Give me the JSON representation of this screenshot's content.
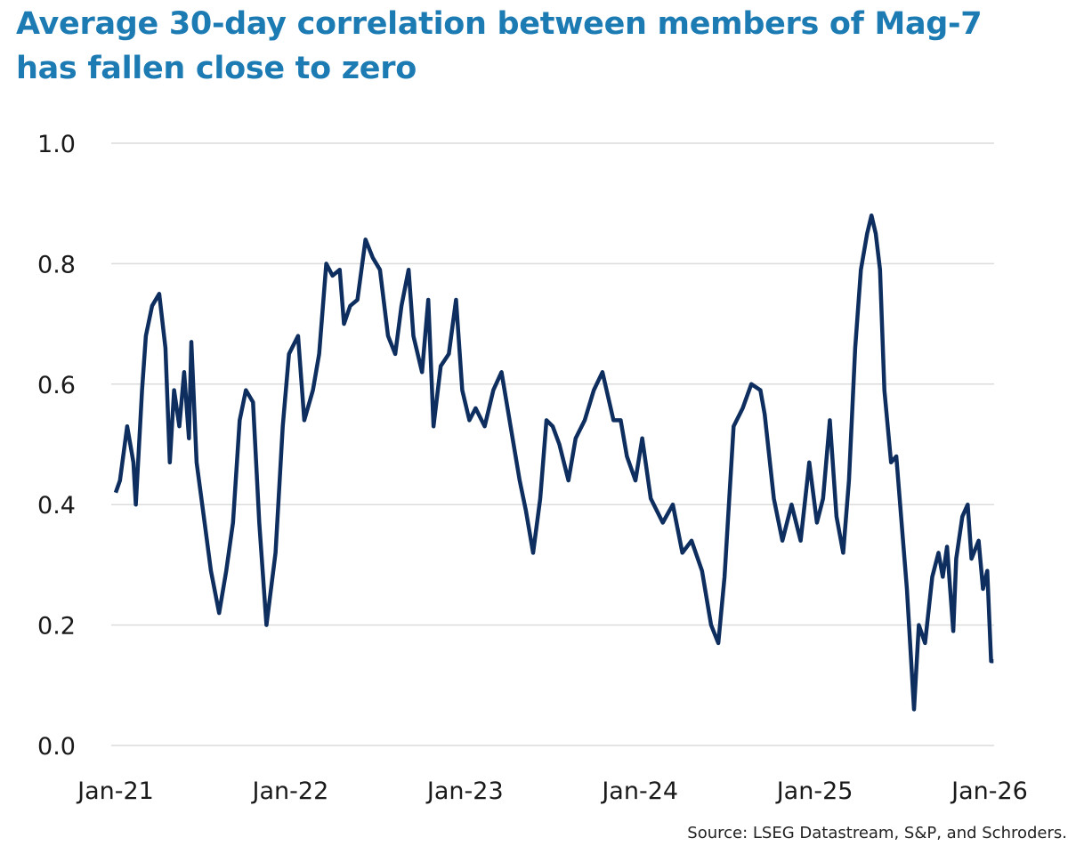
{
  "chart_data": {
    "type": "line",
    "title": "Average 30-day correlation between members of Mag-7 has fallen close to zero",
    "title_lines": [
      "Average 30-day correlation between members of Mag-7",
      "has fallen close to zero"
    ],
    "source": "Source: LSEG Datastream, S&P, and Schroders.",
    "xlabel": "",
    "ylabel": "",
    "ylim": [
      0,
      1.0
    ],
    "xlim": [
      "2021-01-01",
      "2026-01-01"
    ],
    "y_ticks": [
      "0.0",
      "0.2",
      "0.4",
      "0.6",
      "0.8",
      "1.0"
    ],
    "x_ticks": [
      "Jan-21",
      "Jan-22",
      "Jan-23",
      "Jan-24",
      "Jan-25",
      "Jan-26"
    ],
    "grid": true,
    "line_color": "#0d2e5e",
    "title_color": "#1d7bb3",
    "series": [
      {
        "x": [
          "2021-01-01",
          "2021-01-10",
          "2021-01-25",
          "2021-02-07",
          "2021-02-12",
          "2021-02-25",
          "2021-03-05",
          "2021-03-18",
          "2021-04-02",
          "2021-04-15",
          "2021-04-24",
          "2021-05-03",
          "2021-05-14",
          "2021-05-24",
          "2021-06-03",
          "2021-06-08",
          "2021-06-19",
          "2021-07-04",
          "2021-07-19",
          "2021-08-05",
          "2021-08-20",
          "2021-09-03",
          "2021-09-17",
          "2021-09-30",
          "2021-10-15",
          "2021-10-28",
          "2021-11-12",
          "2021-12-01",
          "2021-12-16",
          "2021-12-29",
          "2022-01-17",
          "2022-01-30",
          "2022-02-17",
          "2022-03-02",
          "2022-03-17",
          "2022-03-30",
          "2022-04-14",
          "2022-04-23",
          "2022-05-06",
          "2022-05-21",
          "2022-06-07",
          "2022-06-22",
          "2022-07-07",
          "2022-07-24",
          "2022-08-08",
          "2022-08-21",
          "2022-09-05",
          "2022-09-15",
          "2022-10-03",
          "2022-10-16",
          "2022-10-27",
          "2022-11-11",
          "2022-11-28",
          "2022-12-13",
          "2022-12-26",
          "2023-01-10",
          "2023-01-23",
          "2023-02-11",
          "2023-03-01",
          "2023-03-18",
          "2023-04-06",
          "2023-04-25",
          "2023-05-08",
          "2023-05-23",
          "2023-06-07",
          "2023-06-20",
          "2023-07-03",
          "2023-07-17",
          "2023-08-05",
          "2023-08-20",
          "2023-09-08",
          "2023-09-27",
          "2023-10-15",
          "2023-11-07",
          "2023-11-22",
          "2023-12-05",
          "2023-12-23",
          "2024-01-06",
          "2024-01-24",
          "2024-02-18",
          "2024-03-10",
          "2024-03-30",
          "2024-04-18",
          "2024-05-10",
          "2024-05-29",
          "2024-06-13",
          "2024-06-26",
          "2024-07-15",
          "2024-08-03",
          "2024-08-21",
          "2024-09-09",
          "2024-09-18",
          "2024-10-07",
          "2024-10-25",
          "2024-11-13",
          "2024-12-02",
          "2024-12-20",
          "2025-01-05",
          "2025-01-18",
          "2025-02-01",
          "2025-02-15",
          "2025-03-01",
          "2025-03-13",
          "2025-03-26",
          "2025-04-07",
          "2025-04-20",
          "2025-04-29",
          "2025-05-08",
          "2025-05-17",
          "2025-05-26",
          "2025-06-09",
          "2025-06-20",
          "2025-07-03",
          "2025-07-12",
          "2025-07-27",
          "2025-08-06",
          "2025-08-19",
          "2025-09-03",
          "2025-09-16",
          "2025-09-25",
          "2025-10-04",
          "2025-10-17",
          "2025-10-23",
          "2025-11-05",
          "2025-11-16",
          "2025-11-24",
          "2025-12-09",
          "2025-12-18",
          "2025-12-27",
          "2026-01-04",
          "2026-01-09"
        ],
        "y": [
          0.42,
          0.44,
          0.53,
          0.47,
          0.4,
          0.59,
          0.68,
          0.73,
          0.75,
          0.66,
          0.47,
          0.59,
          0.53,
          0.62,
          0.51,
          0.67,
          0.47,
          0.38,
          0.29,
          0.22,
          0.29,
          0.37,
          0.54,
          0.59,
          0.57,
          0.37,
          0.2,
          0.32,
          0.53,
          0.65,
          0.68,
          0.54,
          0.59,
          0.65,
          0.8,
          0.78,
          0.79,
          0.7,
          0.73,
          0.74,
          0.84,
          0.81,
          0.79,
          0.68,
          0.65,
          0.73,
          0.79,
          0.68,
          0.62,
          0.74,
          0.53,
          0.63,
          0.65,
          0.74,
          0.59,
          0.54,
          0.56,
          0.53,
          0.59,
          0.62,
          0.53,
          0.44,
          0.39,
          0.32,
          0.41,
          0.54,
          0.53,
          0.5,
          0.44,
          0.51,
          0.54,
          0.59,
          0.62,
          0.54,
          0.54,
          0.48,
          0.44,
          0.51,
          0.41,
          0.37,
          0.4,
          0.32,
          0.34,
          0.29,
          0.2,
          0.17,
          0.28,
          0.53,
          0.56,
          0.6,
          0.59,
          0.55,
          0.41,
          0.34,
          0.4,
          0.34,
          0.47,
          0.37,
          0.41,
          0.54,
          0.38,
          0.32,
          0.44,
          0.66,
          0.79,
          0.85,
          0.88,
          0.85,
          0.79,
          0.59,
          0.47,
          0.48,
          0.35,
          0.26,
          0.06,
          0.2,
          0.17,
          0.28,
          0.32,
          0.28,
          0.33,
          0.19,
          0.31,
          0.38,
          0.4,
          0.31,
          0.34,
          0.26,
          0.29,
          0.14,
          0.14
        ]
      }
    ]
  }
}
